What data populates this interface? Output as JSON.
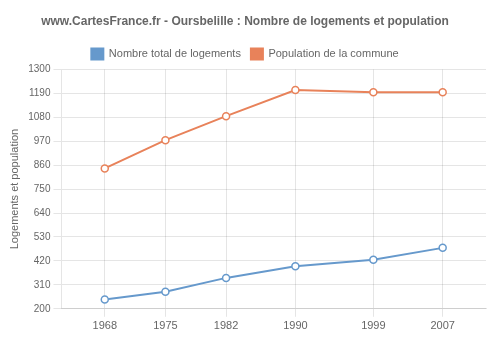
{
  "chart_data": {
    "type": "line",
    "title": "www.CartesFrance.fr - Oursbelille : Nombre de logements et population",
    "ylabel": "Logements et population",
    "x": [
      1968,
      1975,
      1982,
      1990,
      1999,
      2007
    ],
    "series": [
      {
        "name": "Population de la commune",
        "color": "#e8825a",
        "marker": "circle",
        "values": [
          845,
          975,
          1085,
          1205,
          1195,
          1195
        ]
      },
      {
        "name": "Nombre total de logements",
        "color": "#6699cc",
        "marker": "circle",
        "values": [
          243,
          278,
          342,
          395,
          425,
          480
        ]
      }
    ],
    "xlim": [
      1963,
      2012
    ],
    "xticks": [
      1968,
      1975,
      1982,
      1990,
      1999,
      2007
    ],
    "ylim": [
      200,
      1300
    ],
    "yticks": [
      200,
      310,
      420,
      530,
      640,
      750,
      860,
      970,
      1080,
      1190,
      1300
    ],
    "grid": true,
    "legend": "top"
  }
}
